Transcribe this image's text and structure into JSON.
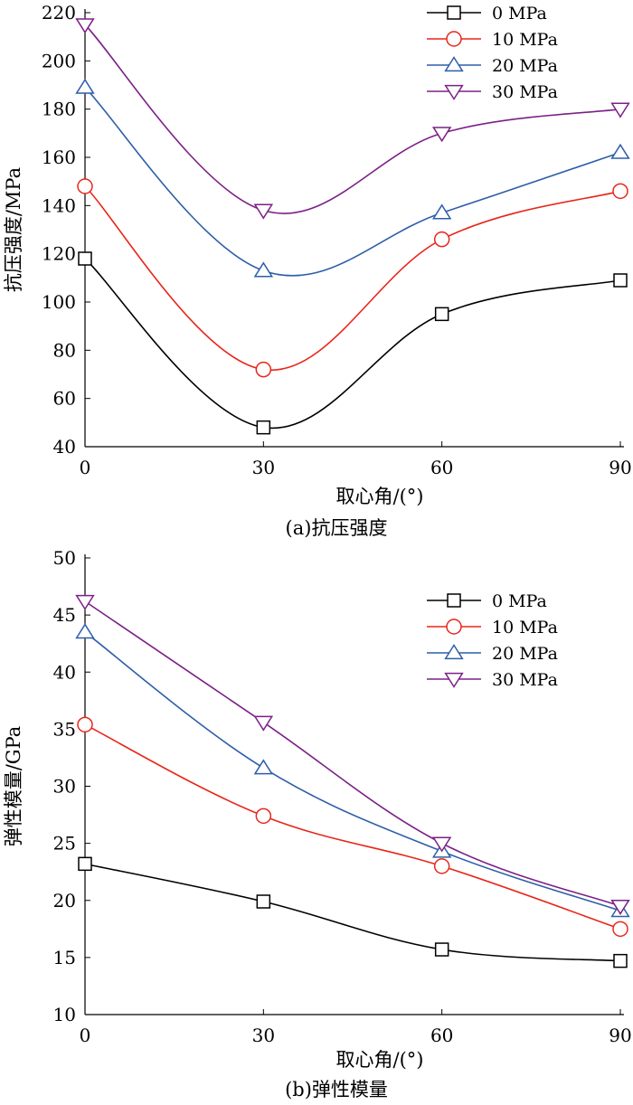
{
  "colors": {
    "s0": "#000000",
    "s1": "#e8261a",
    "s2": "#2e5ea8",
    "s3": "#7b2186"
  },
  "chart_data": [
    {
      "type": "line",
      "caption": "(a)抗压强度",
      "xlabel": "取心角/(°)",
      "ylabel": "抗压强度/MPa",
      "x": [
        0,
        30,
        60,
        90
      ],
      "xticks": [
        0,
        30,
        60,
        90
      ],
      "xlim": [
        0,
        90
      ],
      "ylim": [
        40,
        220
      ],
      "yticks": [
        40,
        60,
        80,
        100,
        120,
        140,
        160,
        180,
        200,
        220
      ],
      "legend": "top-right",
      "series": [
        {
          "name": "0 MPa",
          "marker": "square",
          "values": [
            118,
            48,
            95,
            109
          ]
        },
        {
          "name": "10 MPa",
          "marker": "circle",
          "values": [
            148,
            72,
            126,
            146
          ]
        },
        {
          "name": "20 MPa",
          "marker": "triangle-up",
          "values": [
            189,
            113,
            137,
            162
          ]
        },
        {
          "name": "30 MPa",
          "marker": "triangle-down",
          "values": [
            215,
            138,
            170,
            180
          ]
        }
      ]
    },
    {
      "type": "line",
      "caption": "(b)弹性模量",
      "xlabel": "取心角/(°)",
      "ylabel": "弹性模量/GPa",
      "x": [
        0,
        30,
        60,
        90
      ],
      "xticks": [
        0,
        30,
        60,
        90
      ],
      "xlim": [
        0,
        90
      ],
      "ylim": [
        10,
        50
      ],
      "yticks": [
        10,
        15,
        20,
        25,
        30,
        35,
        40,
        45,
        50
      ],
      "legend": "top-right",
      "series": [
        {
          "name": "0 MPa",
          "marker": "square",
          "values": [
            23.2,
            19.9,
            15.7,
            14.7
          ]
        },
        {
          "name": "10 MPa",
          "marker": "circle",
          "values": [
            35.4,
            27.4,
            23.0,
            17.5
          ]
        },
        {
          "name": "20 MPa",
          "marker": "triangle-up",
          "values": [
            43.5,
            31.6,
            24.3,
            19.1
          ]
        },
        {
          "name": "30 MPa",
          "marker": "triangle-down",
          "values": [
            46.2,
            35.6,
            25.0,
            19.5
          ]
        }
      ]
    }
  ]
}
